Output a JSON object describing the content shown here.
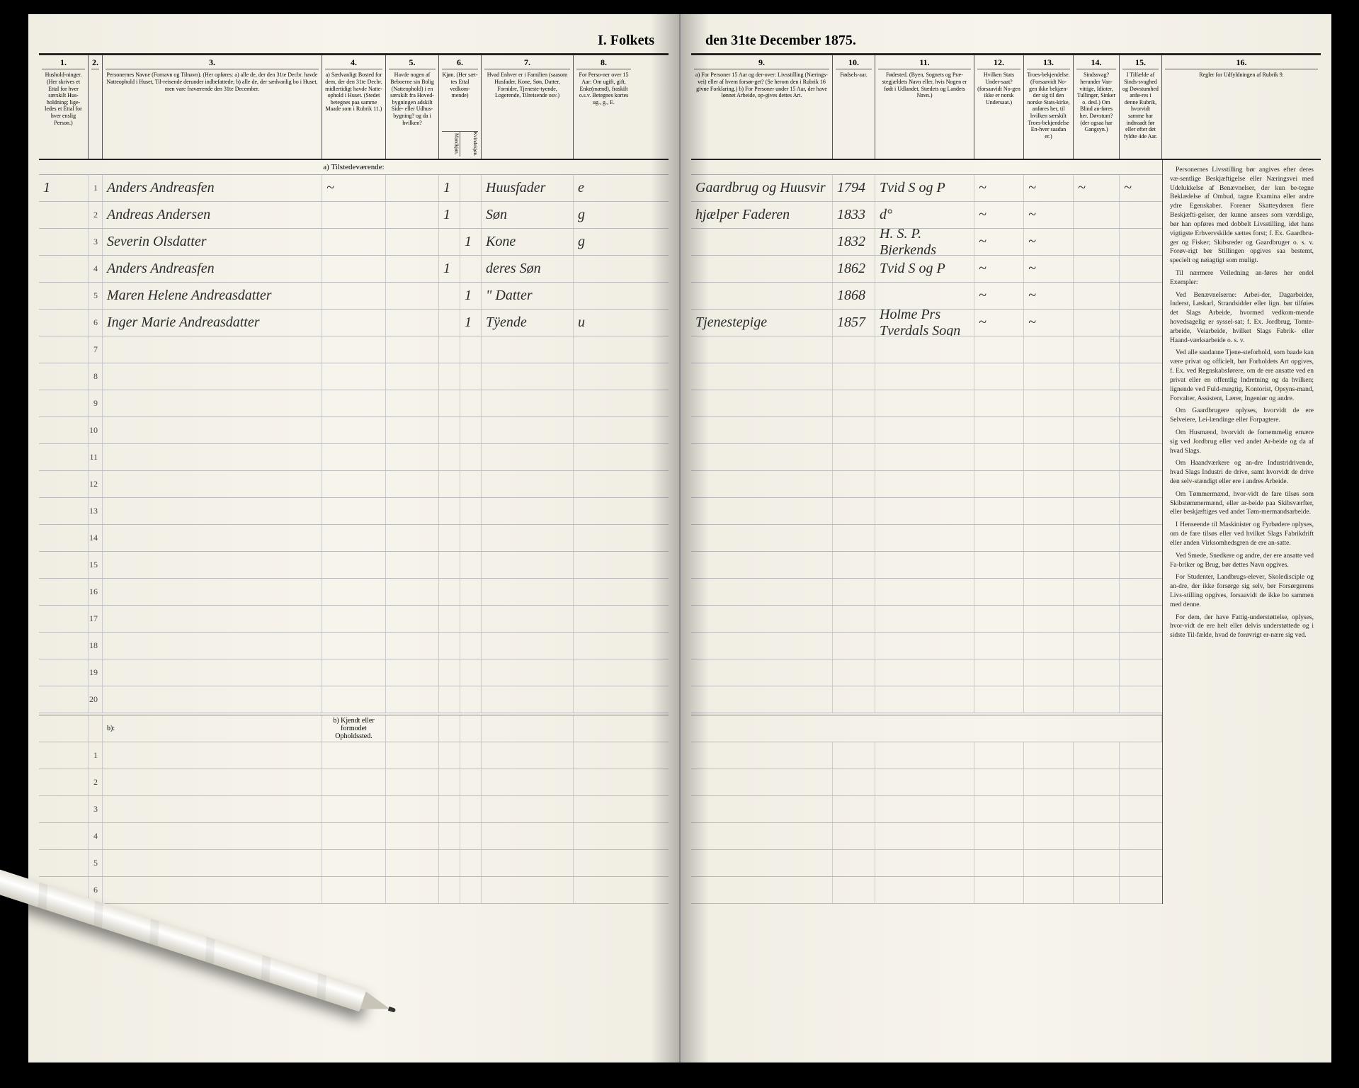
{
  "title_left": "I.  Folkets",
  "title_right": "den 31te December 1875.",
  "headers_left": {
    "c1": {
      "num": "1.",
      "label": "Hushold-ninger. (Her skrives et Ettal for hver særskilt Hus-holdning; lige-ledes et Ettal for hver enslig Person.)"
    },
    "c2": {
      "num": "2.",
      "label": ""
    },
    "c3": {
      "num": "3.",
      "label": "Personernes Navne (Fornavn og Tilnavn). (Her opføres: a) alle de, der den 31te Decbr. havde Natteophold i Huset, Til-reisende derunder indbefattede; b) alle de, der sædvanlig bo i Huset, men vare fraværende den 31te December."
    },
    "c4": {
      "num": "4.",
      "label": "a) Sædvanligt Bosted for dem, der den 31te Decbr. midlertidigt havde Natte-ophold i Huset. (Stedet betegnes paa samme Maade som i Rubrik 11.)"
    },
    "c5": {
      "num": "5.",
      "label": "Havde nogen af Beboerne sin Bolig (Natteophold) i en særskilt fra Hoved-bygningen adskilt Side- eller Udhus-bygning? og da i hvilken?"
    },
    "c6": {
      "num": "6.",
      "label": "Kjøn. (Her sæt-tes Ettal vedkom-mende)"
    },
    "c6a": "Mandkjøn.",
    "c6b": "Kvindekjøn.",
    "c7": {
      "num": "7.",
      "label": "Hvad Enhver er i Familien (saasom Husfader, Kone, Søn, Datter, Fornidre, Tjeneste-tyende, Logerende, Tilreisende osv.)"
    },
    "c8": {
      "num": "8.",
      "label": "For Perso-ner over 15 Aar: Om ugift, gift, Enke(mænd), fraskilt o.s.v. Betegnes kortes ug., g., E."
    }
  },
  "headers_right": {
    "c9": {
      "num": "9.",
      "label": "a) For Personer 15 Aar og der-over: Livsstilling (Nærings-vei) eller af hvem forsør-get? (Se herom den i Rubrik 16 givne Forklaring.) b) For Personer under 15 Aar, der have lønnet Arbeide, op-gives dettes Art."
    },
    "c10": {
      "num": "10.",
      "label": "Fødsels-aar."
    },
    "c11": {
      "num": "11.",
      "label": "Fødested. (Byen, Sognets og Præ-stegjældets Navn eller, hvis Nogen er født i Udlandet, Stædets og Landets Navn.)"
    },
    "c12": {
      "num": "12.",
      "label": "Hvilken Stats Under-saat? (forsaavidt No-gen ikke er norsk Undersaat.)"
    },
    "c13": {
      "num": "13.",
      "label": "Troes-bekjendelse. (Forsaavidt No-gen ikke bekjæn-der sig til den norske Stats-kirke, anføres her, til hvilken særskilt Troes-bekjendelse En-hver saadan er.)"
    },
    "c14": {
      "num": "14.",
      "label": "Sindssvag? herunder Van-vittige, Idioter, Tullinger, Sinker o. desl.) Om Blind an-føres her. Døvstum? (der ogsaa har Gangsyn.)"
    },
    "c15": {
      "num": "15.",
      "label": "I Tilfælde af Sinds-svaghed og Døvstumhed anfø-res i denne Rubrik, hvorvidt samme har indtraadt før eller efter det fyldte 4de Aar."
    },
    "c16": {
      "num": "16.",
      "label": "Regler for Udfyldningen af Rubrik 9."
    }
  },
  "section_a": "a) Tilstedeværende:",
  "section_b_left": "b) Kjendt eller formodet Opholdssted.",
  "rows": [
    {
      "n": "1",
      "hh": "1",
      "name": "Anders Andreasfen",
      "c4": "~",
      "c5": "",
      "m": "1",
      "k": "",
      "rel": "Huusfader",
      "civ": "e",
      "occ": "Gaardbrug og Huusvir",
      "year": "1794",
      "birthplace": "Tvid S og P",
      "c12": "~",
      "c13": "~",
      "c14": "~",
      "c15": "~"
    },
    {
      "n": "2",
      "hh": "",
      "name": "Andreas Andersen",
      "c4": "",
      "c5": "",
      "m": "1",
      "k": "",
      "rel": "Søn",
      "civ": "g",
      "occ": "hjælper Faderen",
      "year": "1833",
      "birthplace": "d°",
      "c12": "~",
      "c13": "~",
      "c14": "",
      "c15": ""
    },
    {
      "n": "3",
      "hh": "",
      "name": "Severin Olsdatter",
      "c4": "",
      "c5": "",
      "m": "",
      "k": "1",
      "rel": "Kone",
      "civ": "g",
      "occ": "",
      "year": "1832",
      "birthplace": "H. S. P.  Bjerkends",
      "c12": "~",
      "c13": "~",
      "c14": "",
      "c15": ""
    },
    {
      "n": "4",
      "hh": "",
      "name": "Anders Andreasfen",
      "c4": "",
      "c5": "",
      "m": "1",
      "k": "",
      "rel": "deres Søn",
      "civ": "",
      "occ": "",
      "year": "1862",
      "birthplace": "Tvid S og P",
      "c12": "~",
      "c13": "~",
      "c14": "",
      "c15": ""
    },
    {
      "n": "5",
      "hh": "",
      "name": "Maren Helene Andreasdatter",
      "c4": "",
      "c5": "",
      "m": "",
      "k": "1",
      "rel": "\" Datter",
      "civ": "",
      "occ": "",
      "year": "1868",
      "birthplace": "",
      "c12": "~",
      "c13": "~",
      "c14": "",
      "c15": ""
    },
    {
      "n": "6",
      "hh": "",
      "name": "Inger Marie Andreasdatter",
      "c4": "",
      "c5": "",
      "m": "",
      "k": "1",
      "rel": "Tÿende",
      "civ": "u",
      "occ": "Tjenestepige",
      "year": "1857",
      "birthplace": "Holme Prs  Tverdals Sogn",
      "c12": "~",
      "c13": "~",
      "c14": "",
      "c15": ""
    }
  ],
  "empty_rows_a": [
    "7",
    "8",
    "9",
    "10",
    "11",
    "12",
    "13",
    "14",
    "15",
    "16",
    "17",
    "18",
    "19",
    "20"
  ],
  "empty_rows_b": [
    "1",
    "2",
    "3",
    "4",
    "5",
    "6"
  ],
  "rules": [
    "Personernes Livsstilling bør angives efter deres væ-sentlige Beskjæftigelse eller Næringsvei med Udelukkelse af Benævnelser, der kun be-tegne Beklædelse af Ombud, tagne Examina eller andre ydre Egenskaber. Forener Skatteyderen flere Beskjæfti-gelser, der kunne ansees som værdslige, bør han opføres med dobbelt Livsstilling, idet hans vigtigste Erhvervskilde sættes forst; f. Ex. Gaardbru-ger og Fisker; Skibsreder og Gaardbruger o. s. v. Forøv-rigt bør Stillingen opgives saa bestemt, specielt og nøiagtigt som muligt.",
    "Til nærmere Veiledning an-føres her endel Exempler:",
    "Ved Benævnelserne: Arbei-der, Dagarbeider, Inderst, Løskarl, Strandsidder eller lign. bør tilføies det Slags Arbeide, hvormed vedkom-mende hovedsagelig er syssel-sat; f. Ex. Jordbrug, Tomte-arbeide, Veiarbeide, hvilket Slags Fabrik- eller Haand-værksarbeide o. s. v.",
    "Ved alle saadanne Tjene-steforhold, som baade kan være privat og officielt, bør Forholdets Art opgives, f. Ex. ved Regnskabsførere, om de ere ansatte ved en privat eller en offentlig Indretning og da hvilken; lignende ved Fuld-mægtig, Kontorist, Opsyns-mand, Forvalter, Assistent, Lærer, Ingeniør og andre.",
    "Om Gaardbrugere oplyses, hvorvidt de ere Selveiere, Lei-lændinge eller Forpagtere.",
    "Om Husmænd, hvorvidt de fornemmelig ernære sig ved Jordbrug eller ved andet Ar-beide og da af hvad Slags.",
    "Om Haandværkere og an-dre Industridrivende, hvad Slags Industri de drive, samt hvorvidt de drive den selv-stændigt eller ere i andres Arbeide.",
    "Om Tømmermænd, hvor-vidt de fare tilsøs som Skibstømmermænd, eller ar-beide paa Skibsværfter, eller beskjæftiges ved andet Tøm-mermandsarbeide.",
    "I Henseende til Maskinister og Fyrbødere oplyses, om de fare tilsøs eller ved hvilket Slags Fabrikdrift eller anden Virksomhedsgren de ere an-satte.",
    "Ved Smede, Snedkere og andre, der ere ansatte ved Fa-briker og Brug, bør dettes Navn opgives.",
    "For Studenter, Landbrugs-elever, Skoledisciple og an-dre, der ikke forsørge sig selv, bør Forsørgerens Livs-stilling opgives, forsaavidt de ikke bo sammen med denne.",
    "For dem, der have Fattig-understøttelse, oplyses, hvor-vidt de ere helt eller delvis understøttede og i sidste Til-fælde, hvad de forøvrigt er-nære sig ved."
  ],
  "colors": {
    "paper": "#f5f2ea",
    "ink": "#222222",
    "handwriting": "#2a2a2a",
    "rule": "#bbbbbb"
  }
}
